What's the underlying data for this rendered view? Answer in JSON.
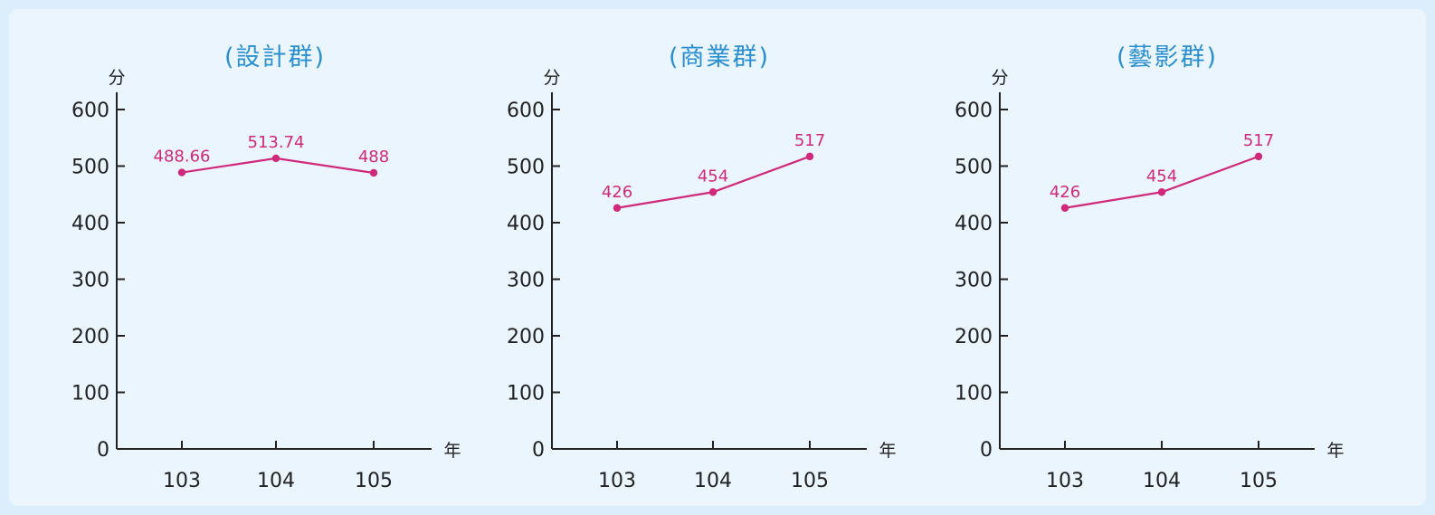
{
  "colors": {
    "title": "#2a8fd0",
    "series": "#d0297c",
    "axis": "#222222"
  },
  "chart_data": [
    {
      "type": "line",
      "title": "(設計群)",
      "ylabel": "分",
      "xlabel": "年",
      "categories": [
        "103",
        "104",
        "105"
      ],
      "yticks": [
        "0",
        "100",
        "200",
        "300",
        "400",
        "500",
        "600"
      ],
      "ylim": [
        0,
        600
      ],
      "grid": false,
      "series": [
        {
          "values": [
            488.66,
            513.74,
            488
          ],
          "labels": [
            "488.66",
            "513.74",
            "488"
          ]
        }
      ]
    },
    {
      "type": "line",
      "title": "(商業群)",
      "ylabel": "分",
      "xlabel": "年",
      "categories": [
        "103",
        "104",
        "105"
      ],
      "yticks": [
        "0",
        "100",
        "200",
        "300",
        "400",
        "500",
        "600"
      ],
      "ylim": [
        0,
        600
      ],
      "grid": false,
      "series": [
        {
          "values": [
            426,
            454,
            517
          ],
          "labels": [
            "426",
            "454",
            "517"
          ]
        }
      ]
    },
    {
      "type": "line",
      "title": "(藝影群)",
      "ylabel": "分",
      "xlabel": "年",
      "categories": [
        "103",
        "104",
        "105"
      ],
      "yticks": [
        "0",
        "100",
        "200",
        "300",
        "400",
        "500",
        "600"
      ],
      "ylim": [
        0,
        600
      ],
      "grid": false,
      "series": [
        {
          "values": [
            426,
            454,
            517
          ],
          "labels": [
            "426",
            "454",
            "517"
          ]
        }
      ]
    }
  ]
}
